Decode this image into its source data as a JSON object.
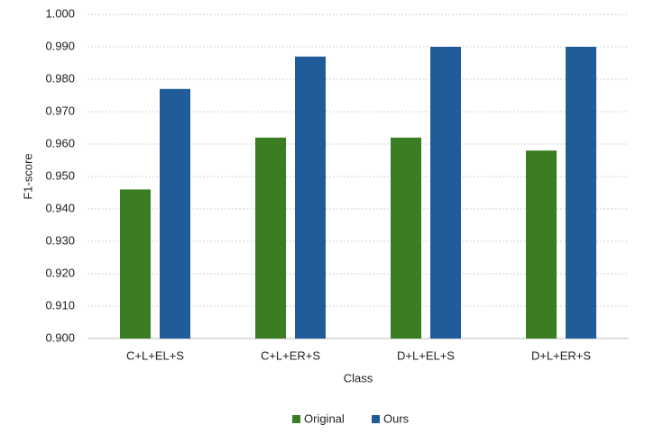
{
  "chart_data": {
    "type": "bar",
    "x_label": "Class",
    "y_label": "F1-score",
    "categories": [
      "C+L+EL+S",
      "C+L+ER+S",
      "D+L+EL+S",
      "D+L+ER+S"
    ],
    "series": [
      {
        "name": "Original",
        "color": "#3a7d22",
        "values": [
          0.946,
          0.962,
          0.962,
          0.958
        ]
      },
      {
        "name": "Ours",
        "color": "#1f5c99",
        "values": [
          0.977,
          0.987,
          0.99,
          0.99
        ]
      }
    ],
    "ylim": [
      0.9,
      1.0
    ],
    "yticks": [
      {
        "value": 0.9,
        "label": "0.900"
      },
      {
        "value": 0.91,
        "label": "0.910"
      },
      {
        "value": 0.92,
        "label": "0.920"
      },
      {
        "value": 0.93,
        "label": "0.930"
      },
      {
        "value": 0.94,
        "label": "0.940"
      },
      {
        "value": 0.95,
        "label": "0.950"
      },
      {
        "value": 0.96,
        "label": "0.960"
      },
      {
        "value": 0.97,
        "label": "0.970"
      },
      {
        "value": 0.98,
        "label": "0.980"
      },
      {
        "value": 0.99,
        "label": "0.990"
      },
      {
        "value": 1.0,
        "label": "1.000"
      }
    ],
    "grid": true,
    "legend": "bottom"
  }
}
